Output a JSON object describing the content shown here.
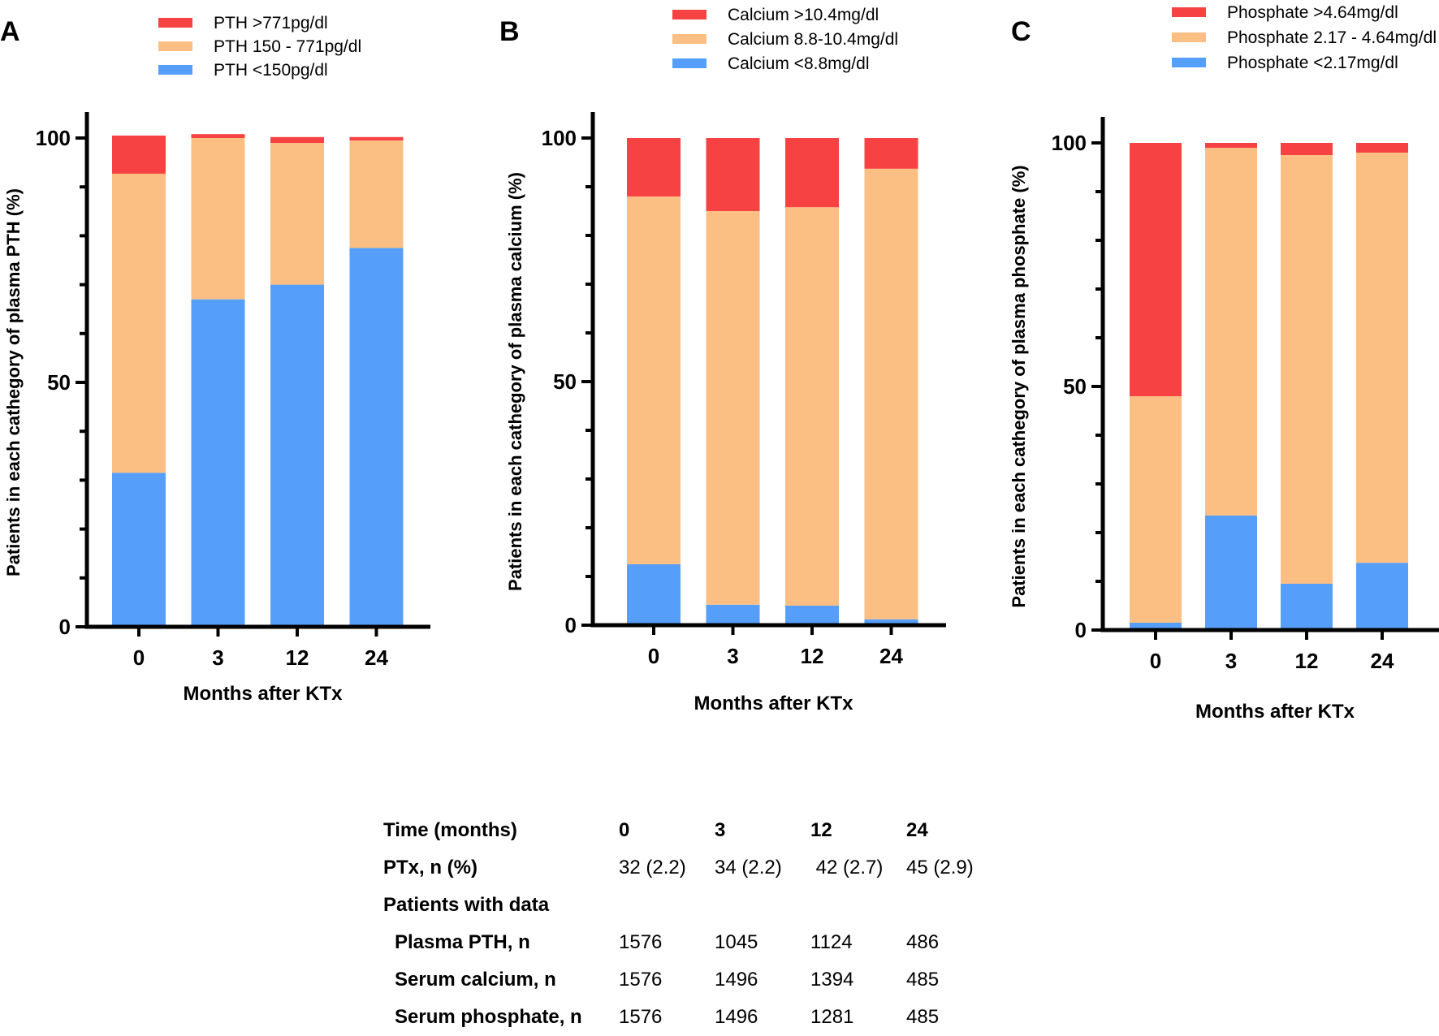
{
  "colors": {
    "high": "#f74243",
    "mid": "#fbbf84",
    "low": "#559ffa",
    "axis": "#000000"
  },
  "chart_data": [
    {
      "type": "bar",
      "stacked": true,
      "panel_letter": "A",
      "title": "",
      "xlabel": "Months after KTx",
      "ylabel": "Patients in each cathegory of plasma PTH (%)",
      "ylim": [
        0,
        100
      ],
      "yticks": [
        "0",
        "50",
        "100"
      ],
      "categories": [
        "0",
        "3",
        "12",
        "24"
      ],
      "legend_position": "top-center",
      "series": [
        {
          "name": "PTH <150pg/dl",
          "color_key": "low",
          "values": [
            31.5,
            67,
            70,
            77.5
          ]
        },
        {
          "name": "PTH 150 - 771pg/dl",
          "color_key": "mid",
          "values": [
            61.2,
            33,
            29,
            22
          ]
        },
        {
          "name": "PTH >771pg/dl",
          "color_key": "high",
          "values": [
            7.8,
            0.8,
            1.2,
            0.7
          ]
        }
      ]
    },
    {
      "type": "bar",
      "stacked": true,
      "panel_letter": "B",
      "title": "",
      "xlabel": "Months after KTx",
      "ylabel": "Patients in each cathegory of plasma calcium (%)",
      "ylim": [
        0,
        100
      ],
      "yticks": [
        "0",
        "50",
        "100"
      ],
      "categories": [
        "0",
        "3",
        "12",
        "24"
      ],
      "legend_position": "top-center",
      "series": [
        {
          "name": "Calcium <8.8mg/dl",
          "color_key": "low",
          "values": [
            12.5,
            4.2,
            4,
            1.2
          ]
        },
        {
          "name": "Calcium 8.8-10.4mg/dl",
          "color_key": "mid",
          "values": [
            75.5,
            80.8,
            81.8,
            92.5
          ]
        },
        {
          "name": "Calcium >10.4mg/dl",
          "color_key": "high",
          "values": [
            12,
            15,
            14.2,
            6.3
          ]
        }
      ]
    },
    {
      "type": "bar",
      "stacked": true,
      "panel_letter": "C",
      "title": "",
      "xlabel": "Months after KTx",
      "ylabel": "Patients in each cathegory of plasma phosphate (%)",
      "ylim": [
        0,
        100
      ],
      "yticks": [
        "0",
        "50",
        "100"
      ],
      "categories": [
        "0",
        "3",
        "12",
        "24"
      ],
      "legend_position": "top-center",
      "series": [
        {
          "name": "Phosphate <2.17mg/dl",
          "color_key": "low",
          "values": [
            1.5,
            23.5,
            9.5,
            13.8
          ]
        },
        {
          "name": "Phosphate 2.17 - 4.64mg/dl",
          "color_key": "mid",
          "values": [
            46.5,
            75.5,
            88,
            84.2
          ]
        },
        {
          "name": "Phosphate >4.64mg/dl",
          "color_key": "high",
          "values": [
            52,
            1,
            2.5,
            2
          ]
        }
      ]
    }
  ],
  "table": {
    "header": {
      "label": "Time (months)",
      "values": [
        "0",
        "3",
        "12",
        "24"
      ]
    },
    "rows": [
      {
        "label": "PTx, n (%)",
        "indent": false,
        "values": [
          "32 (2.2)",
          "34 (2.2)",
          " 42 (2.7)",
          "45 (2.9)"
        ]
      },
      {
        "label": "Patients with data",
        "indent": false,
        "values": [
          "",
          "",
          "",
          ""
        ]
      },
      {
        "label": "Plasma PTH, n",
        "indent": true,
        "values": [
          "1576",
          "1045",
          "1124",
          "486"
        ]
      },
      {
        "label": "Serum calcium, n",
        "indent": true,
        "values": [
          "1576",
          "1496",
          "1394",
          "485"
        ]
      },
      {
        "label": "Serum phosphate, n",
        "indent": true,
        "values": [
          "1576",
          "1496",
          "1281",
          "485"
        ]
      }
    ]
  }
}
